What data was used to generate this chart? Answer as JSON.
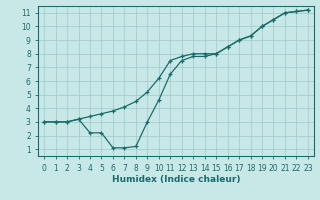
{
  "xlabel": "Humidex (Indice chaleur)",
  "background_color": "#c8e8e8",
  "grid_color": "#a0c8c8",
  "line_color": "#1a6b6b",
  "xlim": [
    -0.5,
    23.5
  ],
  "ylim": [
    0.5,
    11.5
  ],
  "xticks": [
    0,
    1,
    2,
    3,
    4,
    5,
    6,
    7,
    8,
    9,
    10,
    11,
    12,
    13,
    14,
    15,
    16,
    17,
    18,
    19,
    20,
    21,
    22,
    23
  ],
  "yticks": [
    1,
    2,
    3,
    4,
    5,
    6,
    7,
    8,
    9,
    10,
    11
  ],
  "line1_x": [
    0,
    1,
    2,
    3,
    4,
    5,
    6,
    7,
    8,
    9,
    10,
    11,
    12,
    13,
    14,
    15,
    16,
    17,
    18,
    19,
    20,
    21,
    22,
    23
  ],
  "line1_y": [
    3.0,
    3.0,
    3.0,
    3.2,
    3.4,
    3.6,
    3.8,
    4.1,
    4.5,
    5.2,
    6.2,
    7.5,
    7.8,
    8.0,
    8.0,
    8.0,
    8.5,
    9.0,
    9.3,
    10.0,
    10.5,
    11.0,
    11.1,
    11.2
  ],
  "line2_x": [
    0,
    1,
    2,
    3,
    4,
    5,
    6,
    7,
    8,
    9,
    10,
    11,
    12,
    13,
    14,
    15,
    16,
    17,
    18,
    19,
    20,
    21,
    22,
    23
  ],
  "line2_y": [
    3.0,
    3.0,
    3.0,
    3.2,
    2.2,
    2.2,
    1.1,
    1.1,
    1.2,
    3.0,
    4.6,
    6.5,
    7.5,
    7.8,
    7.8,
    8.0,
    8.5,
    9.0,
    9.3,
    10.0,
    10.5,
    11.0,
    11.1,
    11.2
  ],
  "tick_fontsize": 5.5,
  "xlabel_fontsize": 6.5
}
